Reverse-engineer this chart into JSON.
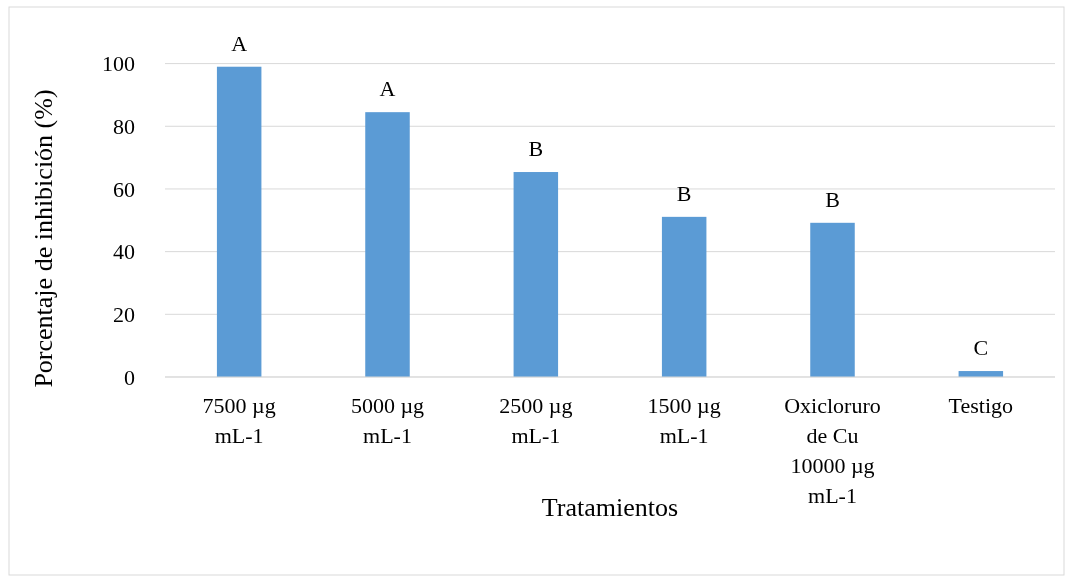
{
  "chart_data": {
    "type": "bar",
    "xlabel": "Tratamientos",
    "ylabel": "Porcentaje de inhibición (%)",
    "categories": [
      "7500 µg mL-1",
      "5000 µg mL-1",
      "2500 µg mL-1",
      "1500 µg mL-1",
      "Oxicloruro de Cu 10000 µg mL-1",
      "Testigo"
    ],
    "values": [
      99.0,
      84.5,
      65.4,
      51.1,
      49.2,
      1.9
    ],
    "color": "#5b9bd5",
    "ylim": [
      0,
      100
    ],
    "yticks": [
      0,
      20,
      40,
      60,
      80,
      100
    ],
    "grid": "y",
    "annotations": [
      {
        "text": "A",
        "x": "7500 µg mL-1",
        "y": 99.0
      },
      {
        "text": "A",
        "x": "5000 µg mL-1",
        "y": 84.5
      },
      {
        "text": "B",
        "x": "2500 µg mL-1",
        "y": 65.4
      },
      {
        "text": "B",
        "x": "1500 µg mL-1",
        "y": 51.1
      },
      {
        "text": "B",
        "x": "Oxicloruro de Cu 10000 µg mL-1",
        "y": 49.2
      },
      {
        "text": "C",
        "x": "Testigo",
        "y": 1.9
      }
    ]
  }
}
